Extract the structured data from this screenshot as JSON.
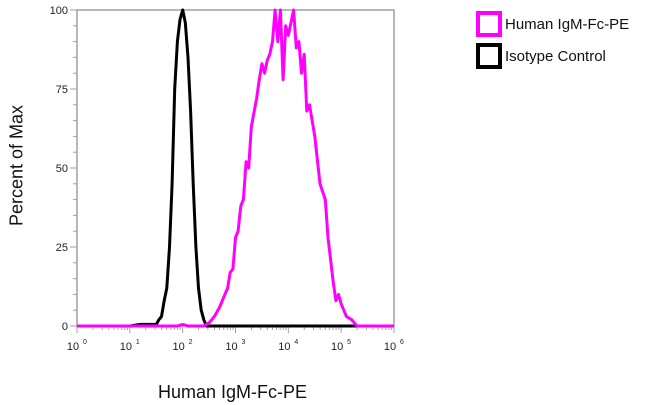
{
  "chart_data": {
    "type": "line",
    "title": "",
    "xlabel": "Human IgM-Fc-PE",
    "ylabel": "Percent of Max",
    "xscale": "log",
    "xlim": [
      1,
      1000000
    ],
    "ylim": [
      0,
      100
    ],
    "x_ticks": [
      "10^0",
      "10^1",
      "10^2",
      "10^3",
      "10^4",
      "10^5",
      "10^6"
    ],
    "y_ticks": [
      0,
      25,
      50,
      75,
      100
    ],
    "grid": false,
    "legend_position": "right-top",
    "series": [
      {
        "name": "Human IgM-Fc-PE",
        "color": "#ff00ff",
        "points_log10x_y": [
          [
            0,
            0
          ],
          [
            1.9,
            0
          ],
          [
            2.0,
            0.5
          ],
          [
            2.1,
            0
          ],
          [
            2.4,
            0
          ],
          [
            2.5,
            1
          ],
          [
            2.6,
            3
          ],
          [
            2.7,
            6
          ],
          [
            2.8,
            10
          ],
          [
            2.85,
            12
          ],
          [
            2.9,
            17
          ],
          [
            2.95,
            18
          ],
          [
            3.0,
            28
          ],
          [
            3.05,
            30
          ],
          [
            3.1,
            38
          ],
          [
            3.15,
            40
          ],
          [
            3.2,
            52
          ],
          [
            3.25,
            50
          ],
          [
            3.3,
            63
          ],
          [
            3.4,
            72
          ],
          [
            3.45,
            78
          ],
          [
            3.5,
            83
          ],
          [
            3.55,
            80
          ],
          [
            3.6,
            84
          ],
          [
            3.65,
            86
          ],
          [
            3.7,
            90
          ],
          [
            3.75,
            100
          ],
          [
            3.8,
            90
          ],
          [
            3.85,
            100
          ],
          [
            3.9,
            78
          ],
          [
            3.95,
            95
          ],
          [
            4.0,
            92
          ],
          [
            4.05,
            96
          ],
          [
            4.1,
            100
          ],
          [
            4.15,
            88
          ],
          [
            4.2,
            90
          ],
          [
            4.25,
            80
          ],
          [
            4.3,
            86
          ],
          [
            4.35,
            68
          ],
          [
            4.4,
            70
          ],
          [
            4.5,
            60
          ],
          [
            4.6,
            45
          ],
          [
            4.7,
            40
          ],
          [
            4.75,
            28
          ],
          [
            4.85,
            14
          ],
          [
            4.9,
            8
          ],
          [
            4.95,
            10
          ],
          [
            5.0,
            7
          ],
          [
            5.05,
            5
          ],
          [
            5.1,
            3
          ],
          [
            5.2,
            2
          ],
          [
            5.3,
            0
          ],
          [
            6.0,
            0
          ]
        ]
      },
      {
        "name": "Isotype Control",
        "color": "#000000",
        "points_log10x_y": [
          [
            0,
            0
          ],
          [
            1.0,
            0
          ],
          [
            1.2,
            0.5
          ],
          [
            1.4,
            0.5
          ],
          [
            1.5,
            0.5
          ],
          [
            1.55,
            2
          ],
          [
            1.6,
            3
          ],
          [
            1.65,
            8
          ],
          [
            1.7,
            12
          ],
          [
            1.75,
            25
          ],
          [
            1.8,
            45
          ],
          [
            1.85,
            75
          ],
          [
            1.9,
            90
          ],
          [
            1.95,
            97
          ],
          [
            2.0,
            100
          ],
          [
            2.05,
            96
          ],
          [
            2.1,
            85
          ],
          [
            2.15,
            68
          ],
          [
            2.2,
            45
          ],
          [
            2.25,
            25
          ],
          [
            2.3,
            12
          ],
          [
            2.35,
            5
          ],
          [
            2.4,
            2
          ],
          [
            2.45,
            0
          ],
          [
            3.0,
            0
          ],
          [
            6.0,
            0
          ]
        ]
      }
    ]
  },
  "axes": {
    "xlabel": "Human IgM-Fc-PE",
    "ylabel": "Percent of Max",
    "y_tick_labels": [
      "0",
      "25",
      "50",
      "75",
      "100"
    ],
    "x_tick_bases": [
      "10",
      "10",
      "10",
      "10",
      "10",
      "10",
      "10"
    ],
    "x_tick_exps": [
      "0",
      "1",
      "2",
      "3",
      "4",
      "5",
      "6"
    ]
  },
  "legend": {
    "items": [
      {
        "label": "Human IgM-Fc-PE",
        "color": "#ff00ff"
      },
      {
        "label": "Isotype Control",
        "color": "#000000"
      }
    ]
  }
}
